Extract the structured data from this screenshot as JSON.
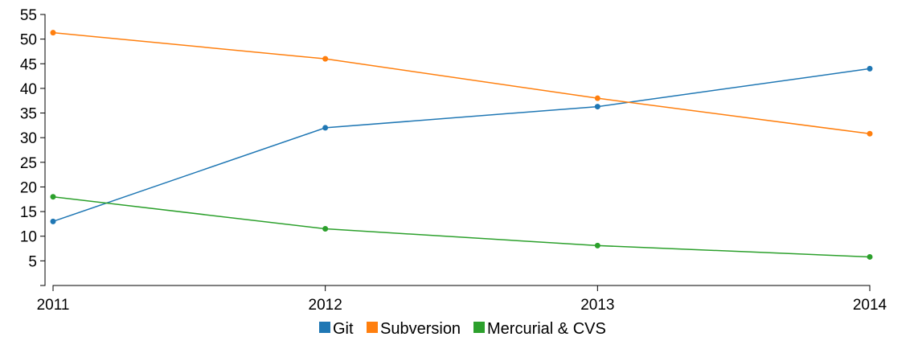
{
  "chart_data": {
    "type": "line",
    "title": "",
    "xlabel": "",
    "ylabel": "",
    "x": [
      "2011",
      "2012",
      "2013",
      "2014"
    ],
    "ylim": [
      0,
      55
    ],
    "yticks": [
      5,
      10,
      15,
      20,
      25,
      30,
      35,
      40,
      45,
      50,
      55
    ],
    "grid": false,
    "legend_position": "bottom",
    "series": [
      {
        "name": "Git",
        "color": "#1f77b4",
        "values": [
          13,
          32,
          36.3,
          44
        ]
      },
      {
        "name": "Subversion",
        "color": "#ff7f0e",
        "values": [
          51.3,
          46,
          38,
          30.8
        ]
      },
      {
        "name": "Mercurial & CVS",
        "color": "#2ca02c",
        "values": [
          18,
          11.5,
          8.1,
          5.8
        ]
      }
    ]
  }
}
